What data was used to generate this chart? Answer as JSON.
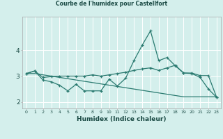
{
  "title": "Courbe de l'humidex pour Castellfort",
  "xlabel": "Humidex (Indice chaleur)",
  "bg_color": "#d4efec",
  "line_color": "#2a7a70",
  "grid_color": "#ffffff",
  "xlim": [
    -0.5,
    23.5
  ],
  "ylim": [
    1.75,
    5.3
  ],
  "yticks": [
    2,
    3,
    4
  ],
  "xticks": [
    0,
    1,
    2,
    3,
    4,
    5,
    6,
    7,
    8,
    9,
    10,
    11,
    12,
    13,
    14,
    15,
    16,
    17,
    18,
    19,
    20,
    21,
    22,
    23
  ],
  "line1_x": [
    0,
    1,
    2,
    3,
    4,
    5,
    6,
    7,
    8,
    9,
    10,
    11,
    12,
    13,
    14,
    15,
    16,
    17,
    18,
    19,
    20,
    21,
    22,
    23
  ],
  "line1_y": [
    3.1,
    3.2,
    2.85,
    2.78,
    2.65,
    2.43,
    2.68,
    2.43,
    2.43,
    2.43,
    2.88,
    2.62,
    2.92,
    3.6,
    4.2,
    4.75,
    3.6,
    3.72,
    3.4,
    3.12,
    3.1,
    2.95,
    2.5,
    2.18
  ],
  "line2_x": [
    0,
    1,
    2,
    3,
    4,
    5,
    6,
    7,
    8,
    9,
    10,
    11,
    12,
    13,
    14,
    15,
    16,
    17,
    18,
    19,
    20,
    21,
    22,
    23
  ],
  "line2_y": [
    3.1,
    3.2,
    2.95,
    2.98,
    3.0,
    3.0,
    3.0,
    3.0,
    3.05,
    3.0,
    3.05,
    3.1,
    3.15,
    3.22,
    3.28,
    3.32,
    3.22,
    3.32,
    3.42,
    3.12,
    3.12,
    3.02,
    3.02,
    2.18
  ],
  "line3_x": [
    0,
    1,
    2,
    3,
    4,
    5,
    6,
    7,
    8,
    9,
    10,
    11,
    12,
    13,
    14,
    15,
    16,
    17,
    18,
    19,
    20,
    21,
    22,
    23
  ],
  "line3_y": [
    3.1,
    3.1,
    3.05,
    3.0,
    2.95,
    2.9,
    2.85,
    2.8,
    2.75,
    2.7,
    2.65,
    2.6,
    2.55,
    2.5,
    2.45,
    2.4,
    2.35,
    2.3,
    2.25,
    2.2,
    2.2,
    2.2,
    2.2,
    2.2
  ]
}
